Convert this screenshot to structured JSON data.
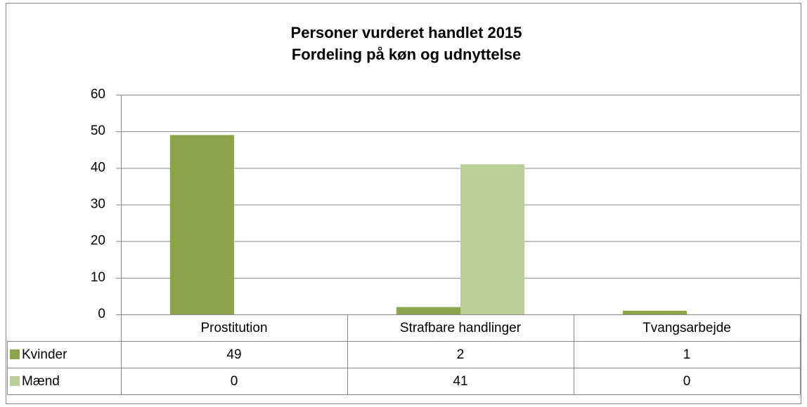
{
  "chart_data": {
    "type": "bar",
    "title": "Personer vurderet handlet 2015",
    "subtitle": "Fordeling på køn og udnyttelse",
    "categories": [
      "Prostitution",
      "Strafbare handlinger",
      "Tvangsarbejde"
    ],
    "series": [
      {
        "name": "Kvinder",
        "color": "#8ba54b",
        "values": [
          49,
          2,
          1
        ]
      },
      {
        "name": "Mænd",
        "color": "#bacf98",
        "values": [
          0,
          41,
          0
        ]
      }
    ],
    "ylim": [
      0,
      60
    ],
    "yticks": [
      0,
      10,
      20,
      30,
      40,
      50,
      60
    ],
    "grid": true,
    "data_table": true
  }
}
